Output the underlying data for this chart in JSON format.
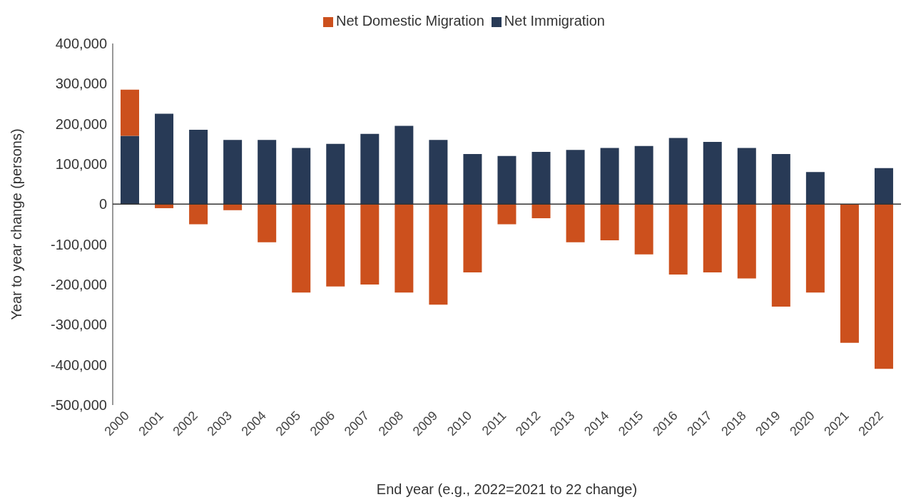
{
  "chart_data": {
    "type": "bar",
    "stacked": true,
    "xlabel": "End year (e.g., 2022=2021 to 22 change)",
    "ylabel": "Year to year change (persons)",
    "categories": [
      "2000",
      "2001",
      "2002",
      "2003",
      "2004",
      "2005",
      "2006",
      "2007",
      "2008",
      "2009",
      "2010",
      "2011",
      "2012",
      "2013",
      "2014",
      "2015",
      "2016",
      "2017",
      "2018",
      "2019",
      "2020",
      "2021",
      "2022"
    ],
    "series": [
      {
        "name": "Net Immigration",
        "color": "#283a56",
        "values": [
          170000,
          225000,
          185000,
          160000,
          160000,
          140000,
          150000,
          175000,
          195000,
          160000,
          125000,
          120000,
          130000,
          135000,
          140000,
          145000,
          165000,
          155000,
          140000,
          125000,
          80000,
          0,
          90000
        ]
      },
      {
        "name": "Net Domestic Migration",
        "color": "#cc501d",
        "values": [
          115000,
          -10000,
          -50000,
          -15000,
          -95000,
          -220000,
          -205000,
          -200000,
          -220000,
          -250000,
          -170000,
          -50000,
          -35000,
          -95000,
          -90000,
          -125000,
          -175000,
          -170000,
          -185000,
          -255000,
          -220000,
          -345000,
          -410000
        ]
      }
    ],
    "ylim": [
      -500000,
      400000
    ],
    "yticks": [
      {
        "value": -500000,
        "label": "-500,000"
      },
      {
        "value": -400000,
        "label": "-400,000"
      },
      {
        "value": -300000,
        "label": "-300,000"
      },
      {
        "value": -200000,
        "label": "-200,000"
      },
      {
        "value": -100000,
        "label": "-100,000"
      },
      {
        "value": 0,
        "label": "0"
      },
      {
        "value": 100000,
        "label": "100,000"
      },
      {
        "value": 200000,
        "label": "200,000"
      },
      {
        "value": 300000,
        "label": "300,000"
      },
      {
        "value": 400000,
        "label": "400,000"
      }
    ],
    "ref_lines": [
      {
        "axis": "y",
        "value": 0,
        "color": "#333333"
      }
    ],
    "grid": false,
    "legend": "top"
  }
}
